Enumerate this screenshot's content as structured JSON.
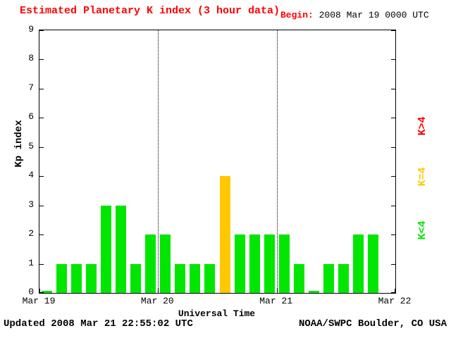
{
  "title": "Estimated Planetary K index (3 hour data)",
  "title_color": "#ff0000",
  "begin": {
    "label": "Begin:",
    "value": "2008 Mar 19 0000 UTC"
  },
  "footer": {
    "updated": "Updated 2008 Mar 21 22:55:02 UTC",
    "source": "NOAA/SWPC Boulder, CO USA"
  },
  "legend": [
    {
      "label": "K>4",
      "color": "#ff0000"
    },
    {
      "label": "K=4",
      "color": "#ffc800"
    },
    {
      "label": "K<4",
      "color": "#00e600"
    }
  ],
  "chart_data": {
    "type": "bar",
    "title": "Estimated Planetary K index (3 hour data)",
    "xlabel": "Universal Time",
    "ylabel": "Kp index",
    "ylim": [
      0,
      9
    ],
    "y_ticks": [
      0,
      1,
      2,
      3,
      4,
      5,
      6,
      7,
      8,
      9
    ],
    "x_ticks": [
      "Mar 19",
      "Mar 20",
      "Mar 21",
      "Mar 22"
    ],
    "bar_interval_hours": 3,
    "slots_total": 24,
    "values": [
      0,
      1,
      1,
      1,
      3,
      3,
      1,
      2,
      2,
      1,
      1,
      1,
      4,
      2,
      2,
      2,
      2,
      1,
      0,
      1,
      1,
      2,
      2
    ],
    "color_rule": {
      "lt4": "#00e600",
      "eq4": "#ffc800",
      "gt4": "#ff0000"
    },
    "grid": "vertical dotted lines at day boundaries",
    "legend_position": "right, rotated"
  }
}
